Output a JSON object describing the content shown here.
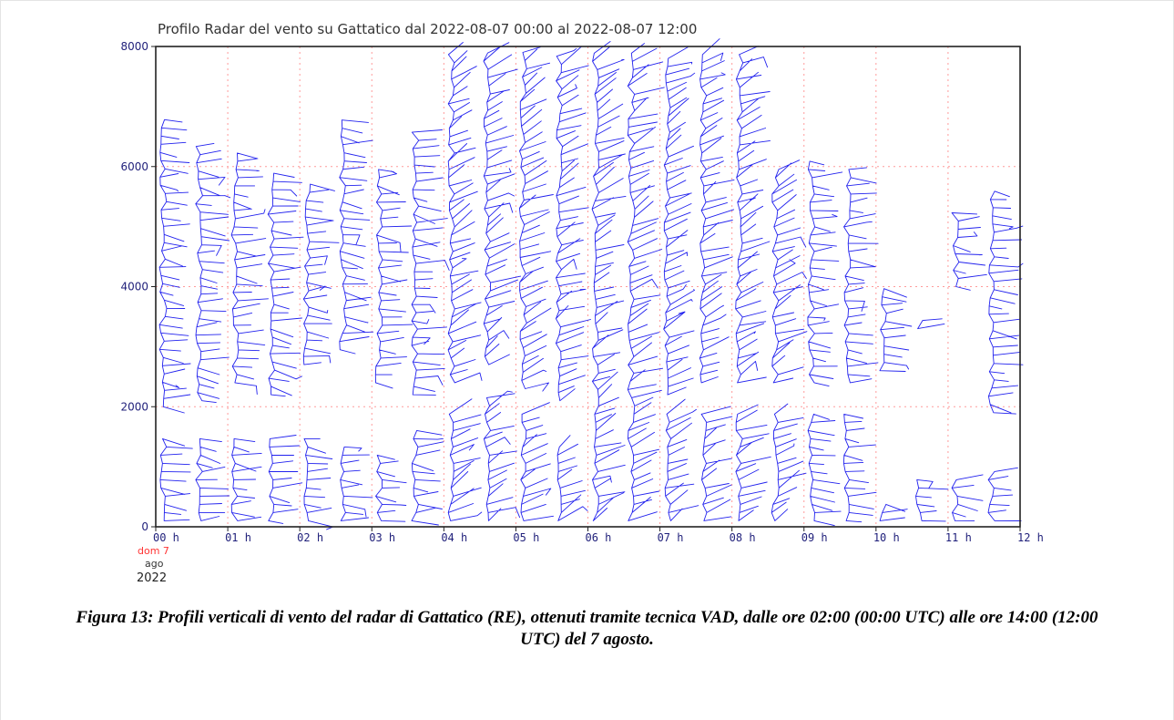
{
  "chart_data": {
    "type": "wind-profile",
    "title": "Profilo Radar del vento su Gattatico dal 2022-08-07 00:00 al 2022-08-07 12:00",
    "xlabel": "",
    "ylabel": "",
    "x_ticks": [
      "00 h",
      "01 h",
      "02 h",
      "03 h",
      "04 h",
      "05 h",
      "06 h",
      "07 h",
      "08 h",
      "09 h",
      "10 h",
      "11 h",
      "12 h"
    ],
    "y_ticks": [
      "0",
      "2000",
      "4000",
      "6000",
      "8000"
    ],
    "xlim": [
      0,
      12
    ],
    "ylim": [
      0,
      8000
    ],
    "date_day": "dom 7",
    "date_month": "ago",
    "date_year": "2022",
    "grid": true,
    "profile_step_hours": 0.5,
    "profiles": [
      {
        "t": 0.0,
        "layers": [
          [
            100,
            1500
          ],
          [
            2000,
            6900
          ]
        ]
      },
      {
        "t": 0.5,
        "layers": [
          [
            100,
            1500
          ],
          [
            2100,
            6400
          ]
        ]
      },
      {
        "t": 1.0,
        "layers": [
          [
            100,
            1500
          ],
          [
            2400,
            6300
          ]
        ]
      },
      {
        "t": 1.5,
        "layers": [
          [
            100,
            1500
          ],
          [
            2200,
            5900
          ]
        ]
      },
      {
        "t": 2.0,
        "layers": [
          [
            100,
            1500
          ],
          [
            2700,
            5800
          ]
        ]
      },
      {
        "t": 2.5,
        "layers": [
          [
            100,
            1400
          ],
          [
            2950,
            6800
          ]
        ]
      },
      {
        "t": 3.0,
        "layers": [
          [
            100,
            1300
          ],
          [
            2400,
            6000
          ]
        ]
      },
      {
        "t": 3.5,
        "layers": [
          [
            100,
            1700
          ],
          [
            2200,
            6600
          ]
        ]
      },
      {
        "t": 4.0,
        "layers": [
          [
            100,
            2000
          ],
          [
            2400,
            8000
          ]
        ]
      },
      {
        "t": 4.5,
        "layers": [
          [
            100,
            2200
          ],
          [
            2700,
            7900
          ]
        ]
      },
      {
        "t": 5.0,
        "layers": [
          [
            100,
            2000
          ],
          [
            2300,
            8000
          ]
        ]
      },
      {
        "t": 5.5,
        "layers": [
          [
            100,
            1400
          ],
          [
            2100,
            7900
          ]
        ]
      },
      {
        "t": 6.0,
        "layers": [
          [
            100,
            7900
          ]
        ]
      },
      {
        "t": 6.5,
        "layers": [
          [
            100,
            7900
          ]
        ]
      },
      {
        "t": 7.0,
        "layers": [
          [
            100,
            1900
          ],
          [
            2200,
            7900
          ]
        ]
      },
      {
        "t": 7.5,
        "layers": [
          [
            100,
            2000
          ],
          [
            2400,
            7900
          ]
        ]
      },
      {
        "t": 8.0,
        "layers": [
          [
            100,
            1900
          ],
          [
            2400,
            7900
          ]
        ]
      },
      {
        "t": 8.5,
        "layers": [
          [
            100,
            2000
          ],
          [
            2400,
            6000
          ]
        ]
      },
      {
        "t": 9.0,
        "layers": [
          [
            100,
            1900
          ],
          [
            2400,
            6200
          ]
        ]
      },
      {
        "t": 9.5,
        "layers": [
          [
            100,
            1900
          ],
          [
            2400,
            6000
          ]
        ]
      },
      {
        "t": 10.0,
        "layers": [
          [
            100,
            500
          ],
          [
            2600,
            4100
          ]
        ]
      },
      {
        "t": 10.5,
        "layers": [
          [
            100,
            800
          ],
          [
            3300,
            3500
          ]
        ]
      },
      {
        "t": 11.0,
        "layers": [
          [
            100,
            800
          ],
          [
            4000,
            5300
          ]
        ]
      },
      {
        "t": 11.5,
        "layers": [
          [
            100,
            1000
          ],
          [
            1900,
            5700
          ]
        ]
      }
    ],
    "line_color": "#2222ee",
    "grid_color": "#ff9a9a",
    "axis_color": "#222222"
  },
  "caption": "Figura 13: Profili verticali di vento del radar di Gattatico (RE), ottenuti tramite tecnica VAD, dalle ore 02:00 (00:00 UTC) alle ore 14:00 (12:00 UTC) del 7 agosto."
}
